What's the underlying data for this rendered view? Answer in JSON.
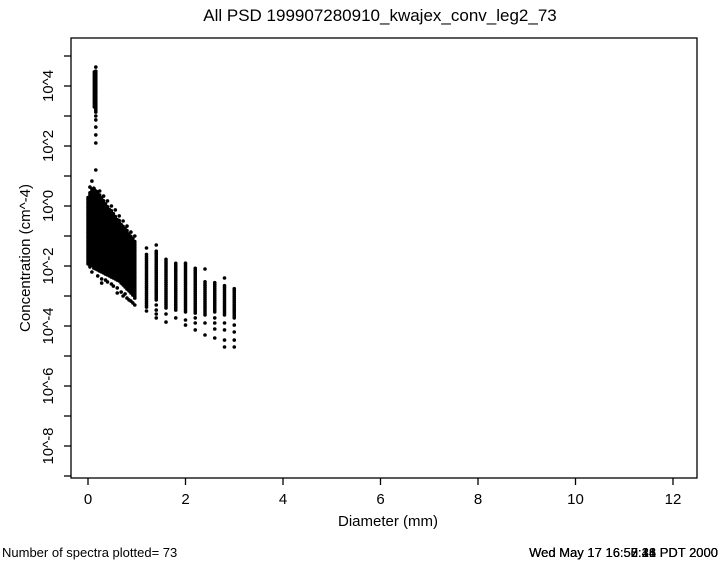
{
  "title": "All PSD 199907280910_kwajex_conv_leg2_73",
  "footer": {
    "left": "Number of spectra plotted= 73",
    "timestamps": [
      "Wed May 17 16:58:44 PDT 2000",
      "Wed May 17 16:50:18 PDT 2000",
      "Wed May 17 16:52:31 PDT 2000",
      "Wed May 17 16:57:26 PDT 2000"
    ]
  },
  "chart_data": {
    "type": "scatter",
    "title": "All PSD 199907280910_kwajex_conv_leg2_73",
    "xlabel": "Diameter (mm)",
    "ylabel": "Concentration (cm^-4)",
    "num_spectra_plotted": 73,
    "xlim": [
      -0.35,
      12.49
    ],
    "ylim_log10": [
      -9.07,
      5.6
    ],
    "x_ticks": [
      0,
      2,
      4,
      6,
      8,
      10,
      12
    ],
    "y_minor_tick_exponents": [
      5,
      3,
      1,
      -1,
      -3,
      -5,
      -7,
      -9
    ],
    "y_labeled_ticks": [
      {
        "exp": 4,
        "label": "10^4"
      },
      {
        "exp": 2,
        "label": "10^2"
      },
      {
        "exp": 0,
        "label": "10^0"
      },
      {
        "exp": -2,
        "label": "10^-2"
      },
      {
        "exp": -4,
        "label": "10^-4"
      },
      {
        "exp": -6,
        "label": "10^-6"
      },
      {
        "exp": -8,
        "label": "10^-8"
      }
    ],
    "grid": false,
    "legend": false,
    "marker": {
      "shape": "filled-circle",
      "color": "#000000",
      "radius_px": 1.8
    },
    "columns_note": "x = diameter in mm; solid = [log10_lo, log10_hi] densely overplotted runs of points; dots = individual point log10(concentration) values",
    "columns": [
      {
        "x": 0.13,
        "solid": [
          [
            3.3,
            4.47
          ],
          [
            -2.05,
            0.6
          ]
        ],
        "dots": []
      },
      {
        "x": 0.16,
        "solid": [
          [
            3.13,
            4.53
          ],
          [
            -2.1,
            0.55
          ]
        ],
        "dots": [
          4.63,
          3.0,
          2.87,
          2.63,
          2.37,
          2.1,
          1.2
        ]
      },
      {
        "x": 0.0,
        "solid": [
          [
            -1.93,
            0.33
          ]
        ],
        "dots": []
      },
      {
        "x": 0.04,
        "solid": [
          [
            -2.03,
            0.5
          ]
        ],
        "dots": [
          0.63
        ]
      },
      {
        "x": 0.08,
        "solid": [
          [
            -1.97,
            0.57
          ]
        ],
        "dots": [
          0.83,
          -2.2
        ]
      },
      {
        "x": 0.12,
        "solid": [
          [
            -2.07,
            0.63
          ]
        ],
        "dots": []
      },
      {
        "x": 0.2,
        "solid": [
          [
            -2.13,
            0.47
          ]
        ],
        "dots": [
          -2.33
        ]
      },
      {
        "x": 0.24,
        "solid": [
          [
            -2.17,
            0.37
          ]
        ],
        "dots": [
          0.5
        ]
      },
      {
        "x": 0.28,
        "solid": [
          [
            -2.2,
            0.3
          ]
        ],
        "dots": [
          -2.43,
          -2.57
        ]
      },
      {
        "x": 0.32,
        "solid": [
          [
            -2.23,
            0.2
          ]
        ],
        "dots": [
          0.33
        ]
      },
      {
        "x": 0.36,
        "solid": [
          [
            -2.27,
            0.1
          ]
        ],
        "dots": [
          -2.47
        ]
      },
      {
        "x": 0.4,
        "solid": [
          [
            -2.3,
            0.03
          ]
        ],
        "dots": [
          0.17,
          -2.53
        ]
      },
      {
        "x": 0.44,
        "solid": [
          [
            -2.33,
            -0.07
          ]
        ],
        "dots": []
      },
      {
        "x": 0.48,
        "solid": [
          [
            -2.37,
            -0.13
          ]
        ],
        "dots": [
          0.0,
          -2.6
        ]
      },
      {
        "x": 0.52,
        "solid": [
          [
            -2.4,
            -0.23
          ]
        ],
        "dots": [
          -2.67
        ]
      },
      {
        "x": 0.56,
        "solid": [
          [
            -2.43,
            -0.3
          ]
        ],
        "dots": [
          -0.13
        ]
      },
      {
        "x": 0.6,
        "solid": [
          [
            -2.47,
            -0.4
          ]
        ],
        "dots": [
          -2.73,
          -2.9
        ]
      },
      {
        "x": 0.64,
        "solid": [
          [
            -2.5,
            -0.47
          ]
        ],
        "dots": [
          -0.33
        ]
      },
      {
        "x": 0.68,
        "solid": [
          [
            -2.57,
            -0.57
          ]
        ],
        "dots": [
          -2.87
        ]
      },
      {
        "x": 0.72,
        "solid": [
          [
            -2.63,
            -0.63
          ]
        ],
        "dots": [
          -0.5,
          -3.0
        ]
      },
      {
        "x": 0.76,
        "solid": [
          [
            -2.7,
            -0.7
          ]
        ],
        "dots": [
          -2.93
        ]
      },
      {
        "x": 0.8,
        "solid": [
          [
            -2.77,
            -0.8
          ]
        ],
        "dots": [
          -0.67,
          -3.07
        ]
      },
      {
        "x": 0.84,
        "solid": [
          [
            -2.83,
            -0.9
          ]
        ],
        "dots": [
          -3.13
        ]
      },
      {
        "x": 0.88,
        "solid": [
          [
            -2.9,
            -0.97
          ]
        ],
        "dots": [
          -0.87,
          -3.17
        ]
      },
      {
        "x": 0.92,
        "solid": [
          [
            -2.97,
            -1.07
          ]
        ],
        "dots": [
          -3.23
        ]
      },
      {
        "x": 0.96,
        "solid": [
          [
            -3.07,
            -1.13
          ]
        ],
        "dots": [
          -1.0,
          -3.3
        ]
      },
      {
        "x": 1.2,
        "solid": [
          [
            -3.37,
            -1.57
          ]
        ],
        "dots": [
          -1.4,
          -3.5
        ]
      },
      {
        "x": 1.4,
        "solid": [
          [
            -3.13,
            -1.47
          ]
        ],
        "dots": [
          -1.3,
          -3.3,
          -3.47,
          -3.6,
          -3.73
        ]
      },
      {
        "x": 1.6,
        "solid": [
          [
            -3.4,
            -1.73
          ]
        ],
        "dots": [
          -3.6,
          -3.87
        ]
      },
      {
        "x": 1.8,
        "solid": [
          [
            -3.47,
            -1.87
          ]
        ],
        "dots": [
          -3.73
        ]
      },
      {
        "x": 2.0,
        "solid": [
          [
            -3.53,
            -1.9
          ]
        ],
        "dots": [
          -3.8,
          -3.97
        ]
      },
      {
        "x": 2.2,
        "solid": [
          [
            -3.57,
            -2.07
          ]
        ],
        "dots": [
          -3.73,
          -3.9,
          -4.13
        ]
      },
      {
        "x": 2.4,
        "solid": [
          [
            -3.63,
            -2.47
          ]
        ],
        "dots": [
          -2.1,
          -3.9,
          -4.3
        ]
      },
      {
        "x": 2.6,
        "solid": [
          [
            -3.53,
            -2.53
          ]
        ],
        "dots": [
          -3.73,
          -3.9,
          -4.1,
          -4.4
        ]
      },
      {
        "x": 2.8,
        "solid": [
          [
            -3.63,
            -2.63
          ]
        ],
        "dots": [
          -2.4,
          -3.9,
          -4.13,
          -4.47,
          -4.7
        ]
      },
      {
        "x": 3.0,
        "solid": [
          [
            -3.73,
            -2.73
          ]
        ],
        "dots": [
          -3.97,
          -4.2,
          -4.47,
          -4.7
        ]
      }
    ]
  }
}
